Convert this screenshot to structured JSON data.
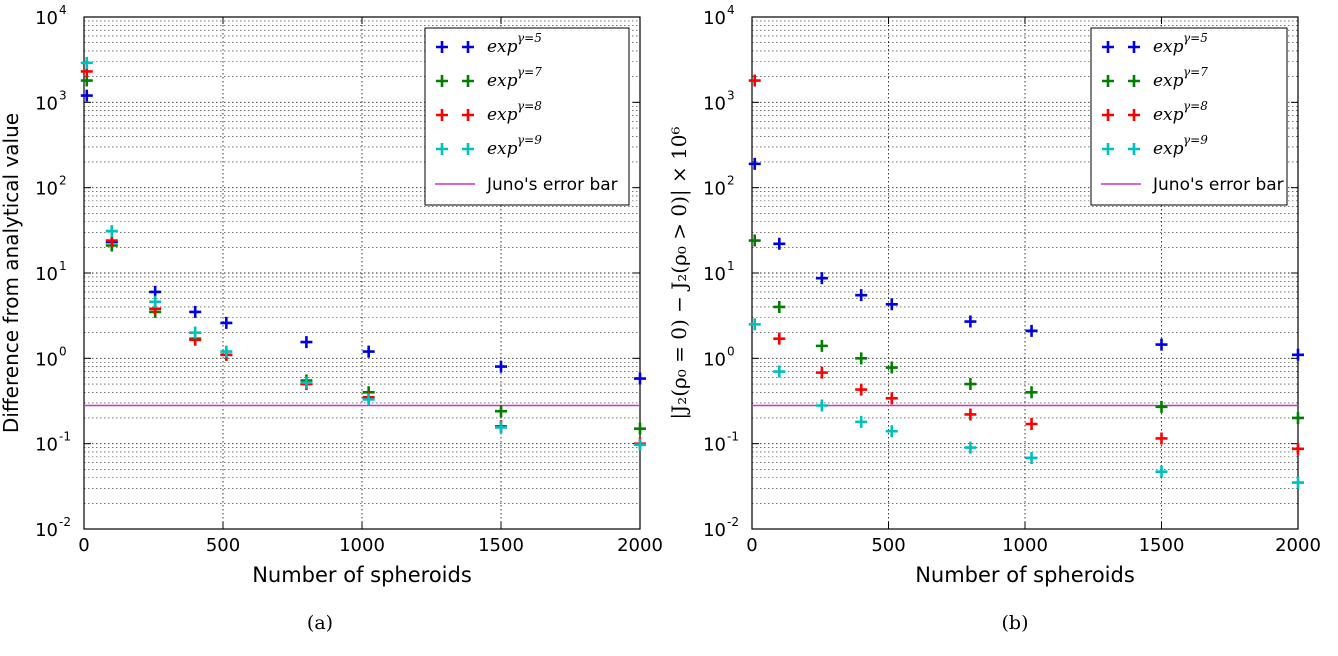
{
  "captions": [
    "(a)",
    "(b)"
  ],
  "chart_data": [
    {
      "type": "scatter",
      "xlabel": "Number of spheroids",
      "ylabel": "Difference from analytical value",
      "xlim": [
        0,
        2000
      ],
      "ylim": [
        0.01,
        10000
      ],
      "yscale": "log",
      "xticks": [
        0,
        500,
        1000,
        1500,
        2000
      ],
      "xtick_labels": [
        "0",
        "500",
        "1000",
        "1500",
        "2000"
      ],
      "ytick_labels": [
        "10",
        "10",
        "10",
        "10",
        "10",
        "10",
        "10"
      ],
      "ytick_exponents": [
        "-2",
        "-1",
        "0",
        "1",
        "2",
        "3",
        "4"
      ],
      "ytick_values": [
        0.01,
        0.1,
        1,
        10,
        100,
        1000,
        10000
      ],
      "grid": true,
      "legend_position": "top-right",
      "series": [
        {
          "name": "exp",
          "name_sup": "γ=5",
          "color": "#0000dd",
          "marker": "plus",
          "x": [
            10,
            100,
            256,
            400,
            512,
            800,
            1024,
            1500,
            2000
          ],
          "y": [
            1200,
            23,
            6.0,
            3.5,
            2.6,
            1.55,
            1.2,
            0.8,
            0.58
          ]
        },
        {
          "name": "exp",
          "name_sup": "γ=7",
          "color": "#007f00",
          "marker": "plus",
          "x": [
            10,
            100,
            256,
            400,
            512,
            800,
            1024,
            1500,
            2000
          ],
          "y": [
            1800,
            21,
            3.5,
            1.7,
            1.1,
            0.55,
            0.4,
            0.24,
            0.15
          ]
        },
        {
          "name": "exp",
          "name_sup": "γ=8",
          "color": "#ff0000",
          "marker": "plus",
          "x": [
            10,
            100,
            256,
            400,
            512,
            800,
            1024,
            1500,
            2000
          ],
          "y": [
            2300,
            24,
            3.8,
            1.65,
            1.1,
            0.5,
            0.35,
            0.16,
            0.1
          ]
        },
        {
          "name": "exp",
          "name_sup": "γ=9",
          "color": "#00bfbf",
          "marker": "plus",
          "x": [
            10,
            100,
            256,
            400,
            512,
            800,
            1024,
            1500,
            2000
          ],
          "y": [
            2900,
            31,
            4.6,
            2.0,
            1.2,
            0.52,
            0.33,
            0.155,
            0.097
          ]
        }
      ],
      "reference_line": {
        "name": "Juno's error bar",
        "color": "#cc33cc",
        "y": 0.28
      }
    },
    {
      "type": "scatter",
      "xlabel": "Number of spheroids",
      "ylabel": "|J₂(ρ₀ = 0) − J₂(ρ₀ > 0)| × 10⁶",
      "xlim": [
        0,
        2000
      ],
      "ylim": [
        0.01,
        10000
      ],
      "yscale": "log",
      "xticks": [
        0,
        500,
        1000,
        1500,
        2000
      ],
      "xtick_labels": [
        "0",
        "500",
        "1000",
        "1500",
        "2000"
      ],
      "ytick_labels": [
        "10",
        "10",
        "10",
        "10",
        "10",
        "10",
        "10"
      ],
      "ytick_exponents": [
        "-2",
        "-1",
        "0",
        "1",
        "2",
        "3",
        "4"
      ],
      "ytick_values": [
        0.01,
        0.1,
        1,
        10,
        100,
        1000,
        10000
      ],
      "grid": true,
      "legend_position": "top-right",
      "series": [
        {
          "name": "exp",
          "name_sup": "γ=5",
          "color": "#0000dd",
          "marker": "plus",
          "x": [
            10,
            100,
            256,
            400,
            512,
            800,
            1024,
            1500,
            2000
          ],
          "y": [
            190,
            22,
            8.7,
            5.5,
            4.3,
            2.7,
            2.1,
            1.45,
            1.1
          ]
        },
        {
          "name": "exp",
          "name_sup": "γ=7",
          "color": "#007f00",
          "marker": "plus",
          "x": [
            10,
            100,
            256,
            400,
            512,
            800,
            1024,
            1500,
            2000
          ],
          "y": [
            24,
            4.0,
            1.4,
            1.0,
            0.78,
            0.5,
            0.4,
            0.27,
            0.2
          ]
        },
        {
          "name": "exp",
          "name_sup": "γ=8",
          "color": "#ff0000",
          "marker": "plus",
          "x": [
            10,
            100,
            256,
            400,
            512,
            800,
            1024,
            1500,
            2000
          ],
          "y": [
            1800,
            1.7,
            0.68,
            0.43,
            0.34,
            0.22,
            0.17,
            0.115,
            0.087
          ]
        },
        {
          "name": "exp",
          "name_sup": "γ=9",
          "color": "#00bfbf",
          "marker": "plus",
          "x": [
            10,
            100,
            256,
            400,
            512,
            800,
            1024,
            1500,
            2000
          ],
          "y": [
            2.5,
            0.7,
            0.28,
            0.18,
            0.14,
            0.09,
            0.068,
            0.047,
            0.035
          ]
        }
      ],
      "reference_line": {
        "name": "Juno's error bar",
        "color": "#cc33cc",
        "y": 0.28
      }
    }
  ]
}
